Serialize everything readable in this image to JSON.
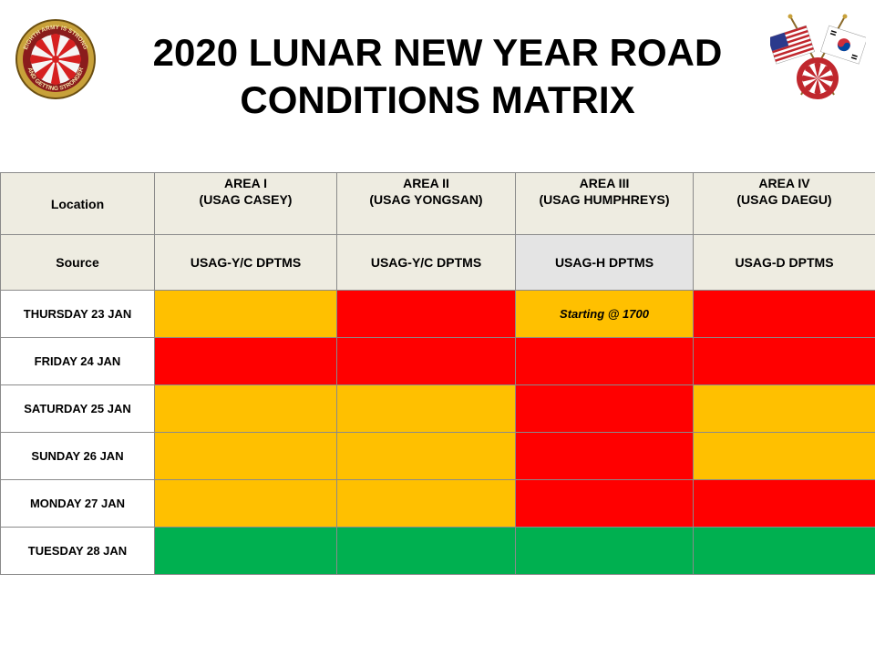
{
  "title": {
    "line1": "2020 LUNAR NEW YEAR ROAD",
    "line2": "CONDITIONS MATRIX"
  },
  "logos": {
    "left": {
      "ring_text_top": "EIGHTH ARMY IS STRONG",
      "ring_text_bottom": "AND GETTING STRONGER",
      "icon": "eighth-army-insignia"
    },
    "right": {
      "icon": "crossed-flags-us-korea-eighth-army"
    }
  },
  "colors": {
    "amber": "#ffc000",
    "red": "#ff0000",
    "green": "#00b050",
    "header_bg": "#eeece1",
    "source_alt_bg": "#e4e4e4"
  },
  "table": {
    "location_label": "Location",
    "source_label": "Source",
    "areas": [
      {
        "name": "AREA I",
        "garrison": "(USAG CASEY)",
        "source": "USAG-Y/C DPTMS"
      },
      {
        "name": "AREA II",
        "garrison": "(USAG YONGSAN)",
        "source": "USAG-Y/C DPTMS"
      },
      {
        "name": "AREA III",
        "garrison": "(USAG HUMPHREYS)",
        "source": "USAG-H DPTMS"
      },
      {
        "name": "AREA IV",
        "garrison": "(USAG DAEGU)",
        "source": "USAG-D DPTMS"
      }
    ],
    "rows": [
      {
        "day": "THURSDAY 23 JAN",
        "cells": [
          {
            "status": "amber",
            "note": ""
          },
          {
            "status": "red",
            "note": ""
          },
          {
            "status": "amber",
            "note": "Starting @ 1700"
          },
          {
            "status": "red",
            "note": ""
          }
        ]
      },
      {
        "day": "FRIDAY 24 JAN",
        "cells": [
          {
            "status": "red",
            "note": ""
          },
          {
            "status": "red",
            "note": ""
          },
          {
            "status": "red",
            "note": ""
          },
          {
            "status": "red",
            "note": ""
          }
        ]
      },
      {
        "day": "SATURDAY 25 JAN",
        "cells": [
          {
            "status": "amber",
            "note": ""
          },
          {
            "status": "amber",
            "note": ""
          },
          {
            "status": "red",
            "note": ""
          },
          {
            "status": "amber",
            "note": ""
          }
        ]
      },
      {
        "day": "SUNDAY 26 JAN",
        "cells": [
          {
            "status": "amber",
            "note": ""
          },
          {
            "status": "amber",
            "note": ""
          },
          {
            "status": "red",
            "note": ""
          },
          {
            "status": "amber",
            "note": ""
          }
        ]
      },
      {
        "day": "MONDAY 27 JAN",
        "cells": [
          {
            "status": "amber",
            "note": ""
          },
          {
            "status": "amber",
            "note": ""
          },
          {
            "status": "red",
            "note": ""
          },
          {
            "status": "red",
            "note": ""
          }
        ]
      },
      {
        "day": "TUESDAY 28 JAN",
        "cells": [
          {
            "status": "green",
            "note": ""
          },
          {
            "status": "green",
            "note": ""
          },
          {
            "status": "green",
            "note": ""
          },
          {
            "status": "green",
            "note": ""
          }
        ]
      }
    ]
  }
}
